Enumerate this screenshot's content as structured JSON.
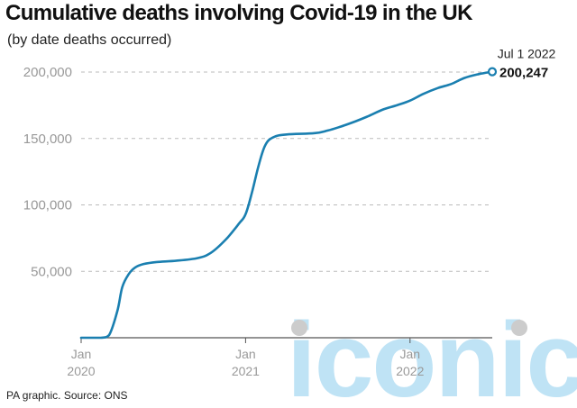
{
  "title": "Cumulative deaths involving Covid-19 in the UK",
  "subtitle": "(by date deaths occurred)",
  "source": "PA graphic. Source: ONS",
  "watermark": "iconic",
  "colors": {
    "line": "#1a7fb0",
    "grid": "#bbbbbb",
    "axis": "#555555",
    "tick_text": "#999999"
  },
  "chart_data": {
    "type": "line",
    "title": "Cumulative deaths involving Covid-19 in the UK",
    "subtitle": "(by date deaths occurred)",
    "xlabel": "",
    "ylabel": "",
    "ylim": [
      0,
      200000
    ],
    "xlim": [
      2020.0,
      2022.5
    ],
    "grid": "horizontal dashed",
    "y_ticks": [
      {
        "value": 50000,
        "label": "50,000"
      },
      {
        "value": 100000,
        "label": "100,000"
      },
      {
        "value": 150000,
        "label": "150,000"
      },
      {
        "value": 200000,
        "label": "200,000"
      }
    ],
    "x_ticks": [
      {
        "value": 2020.0,
        "month": "Jan",
        "year": "2020"
      },
      {
        "value": 2021.0,
        "month": "Jan",
        "year": "2021"
      },
      {
        "value": 2022.0,
        "month": "Jan",
        "year": "2022"
      }
    ],
    "series": [
      {
        "name": "Cumulative deaths",
        "x": [
          2020.0,
          2020.12,
          2020.17,
          2020.22,
          2020.25,
          2020.29,
          2020.33,
          2020.38,
          2020.46,
          2020.58,
          2020.71,
          2020.79,
          2020.88,
          2020.96,
          2021.0,
          2021.04,
          2021.08,
          2021.12,
          2021.17,
          2021.25,
          2021.42,
          2021.5,
          2021.58,
          2021.67,
          2021.75,
          2021.83,
          2021.92,
          2022.0,
          2022.08,
          2022.17,
          2022.25,
          2022.33,
          2022.42,
          2022.5
        ],
        "values": [
          0,
          0,
          2000,
          20000,
          38000,
          48000,
          53000,
          55500,
          57000,
          58000,
          60000,
          64000,
          74000,
          86000,
          93000,
          110000,
          130000,
          145000,
          151000,
          153000,
          154000,
          156000,
          159000,
          163000,
          167000,
          171500,
          175000,
          178500,
          183500,
          188000,
          191000,
          195500,
          198500,
          200247
        ]
      }
    ],
    "annotation": {
      "date": "Jul 1 2022",
      "value_label": "200,247",
      "value": 200247
    }
  }
}
